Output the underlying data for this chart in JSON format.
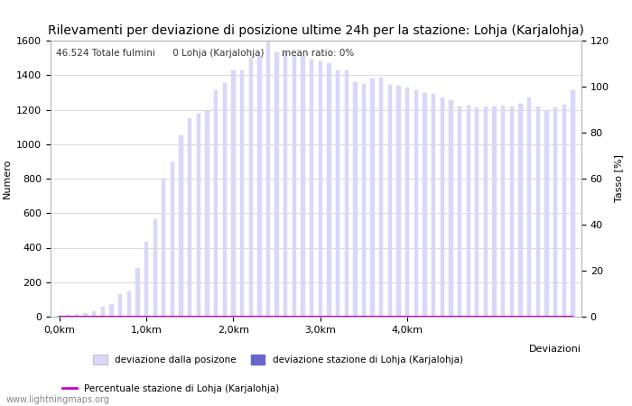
{
  "title": "Rilevamenti per deviazione di posizione ultime 24h per la stazione: Lohja (Karjalohja)",
  "ylabel_left": "Numero",
  "ylabel_right": "Tasso [%]",
  "xlabel_right": "Deviazioni",
  "annotation_text": "46.524 Totale fulmini      0 Lohja (Karjalohja)      mean ratio: 0%",
  "watermark": "www.lightningmaps.org",
  "xtick_labels": [
    "0,0km",
    "1,0km",
    "2,0km",
    "3,0km",
    "4,0km"
  ],
  "xtick_positions": [
    0,
    10,
    20,
    30,
    40
  ],
  "ylim_left": [
    0,
    1600
  ],
  "ylim_right": [
    0,
    120
  ],
  "yticks_left": [
    0,
    200,
    400,
    600,
    800,
    1000,
    1200,
    1400,
    1600
  ],
  "yticks_right": [
    0,
    20,
    40,
    60,
    80,
    100,
    120
  ],
  "bar_color_light": "#d8d8f8",
  "bar_color_dark": "#6666cc",
  "line_color": "#cc00cc",
  "background_color": "#ffffff",
  "grid_color": "#cccccc",
  "bar_values": [
    5,
    10,
    15,
    20,
    30,
    55,
    75,
    130,
    145,
    280,
    435,
    565,
    800,
    900,
    1050,
    1150,
    1175,
    1200,
    1315,
    1355,
    1430,
    1430,
    1495,
    1510,
    1600,
    1530,
    1530,
    1510,
    1510,
    1490,
    1480,
    1470,
    1430,
    1430,
    1360,
    1350,
    1380,
    1385,
    1345,
    1340,
    1330,
    1310,
    1295,
    1290,
    1270,
    1255,
    1220,
    1225,
    1215,
    1220,
    1220,
    1225,
    1220,
    1235,
    1270,
    1220,
    1200,
    1215,
    1230,
    1310
  ],
  "bar_values_dark": [
    0,
    0,
    0,
    0,
    0,
    0,
    0,
    0,
    0,
    0,
    0,
    0,
    0,
    0,
    0,
    0,
    0,
    0,
    0,
    0,
    0,
    0,
    0,
    0,
    0,
    0,
    0,
    0,
    0,
    0,
    0,
    0,
    0,
    0,
    0,
    0,
    0,
    0,
    0,
    0,
    0,
    0,
    0,
    0,
    0,
    0,
    0,
    0,
    0,
    0,
    0,
    0,
    0,
    0,
    0,
    0,
    0,
    0,
    0,
    0
  ],
  "line_values": [
    0,
    0,
    0,
    0,
    0,
    0,
    0,
    0,
    0,
    0,
    0,
    0,
    0,
    0,
    0,
    0,
    0,
    0,
    0,
    0,
    0,
    0,
    0,
    0,
    0,
    0,
    0,
    0,
    0,
    0,
    0,
    0,
    0,
    0,
    0,
    0,
    0,
    0,
    0,
    0,
    0,
    0,
    0,
    0,
    0,
    0,
    0,
    0,
    0,
    0,
    0,
    0,
    0,
    0,
    0,
    0,
    0,
    0,
    0,
    0
  ],
  "legend_light_label": "deviazione dalla posizone",
  "legend_dark_label": "deviazione stazione di Lohja (Karjalohja)",
  "legend_line_label": "Percentuale stazione di Lohja (Karjalohja)",
  "title_fontsize": 10,
  "axis_fontsize": 8,
  "tick_fontsize": 8,
  "n_bars": 60,
  "total_km": 4.5
}
